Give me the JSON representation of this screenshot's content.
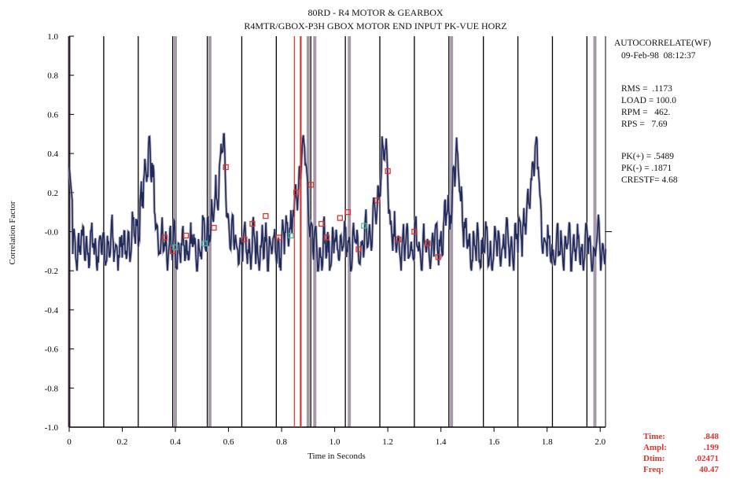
{
  "header": {
    "title": "80RD - R4 MOTOR & GEARBOX",
    "subtitle": "R4MTR/GBOX-P3H   GBOX MOTOR END INPUT PK-VUE HORZ"
  },
  "info": {
    "mode": "AUTOCORRELATE(WF)",
    "datetime": "09-Feb-98  08:12:37",
    "rms": "RMS =  .1173",
    "load": "LOAD = 100.0",
    "rpm": "RPM =   462.",
    "rps": "RPS =   7.69",
    "pk_pos": "PK(+) = .5489",
    "pk_neg": "PK(-) = .1871",
    "crestf": "CRESTF= 4.68"
  },
  "cursor": {
    "time_label": "Time:",
    "time_value": ".848",
    "ampl_label": "Ampl:",
    "ampl_value": ".199",
    "dtim_label": "Dtim:",
    "dtim_value": ".02471",
    "freq_label": "Freq:",
    "freq_value": "40.47"
  },
  "colors": {
    "signal": "#1c2a5c",
    "harmonic_band": "#a79aa8",
    "cursor": "#e0322a",
    "markers": "#e0322a",
    "teal": "#3fbf9f"
  },
  "chart_data": {
    "type": "line",
    "title": "80RD - R4 MOTOR & GEARBOX",
    "subtitle": "R4MTR/GBOX-P3H   GBOX MOTOR END INPUT PK-VUE HORZ",
    "xlabel": "Time in Seconds",
    "ylabel": "Correlation Factor",
    "xlim": [
      0,
      2.02
    ],
    "ylim": [
      -1.0,
      1.0
    ],
    "xticks": [
      0,
      0.2,
      0.4,
      0.6,
      0.8,
      1.0,
      1.2,
      1.4,
      1.6,
      1.8,
      2.0
    ],
    "xtick_labels": [
      "0",
      "0.2",
      "0.4",
      "0.6",
      "0.8",
      "1.0",
      "1.2",
      "1.4",
      "1.6",
      "1.8",
      "2.0"
    ],
    "yticks": [
      1.0,
      0.8,
      0.6,
      0.4,
      0.2,
      0.0,
      -0.2,
      -0.4,
      -0.6,
      -0.8,
      -1.0
    ],
    "ytick_labels": [
      "1.0",
      "0.8",
      "0.6",
      "0.4",
      "0.2",
      "-0.0",
      "-0.2",
      "-0.4",
      "-0.6",
      "-0.8",
      "-1.0"
    ],
    "rotation_marker_times": [
      0.13,
      0.26,
      0.39,
      0.52,
      0.65,
      0.78,
      0.91,
      1.04,
      1.17,
      1.3,
      1.43,
      1.56,
      1.69,
      1.82,
      1.95
    ],
    "harmonic_band_times": [
      0.0,
      0.4,
      0.53,
      0.9,
      0.925,
      1.055,
      1.44,
      1.98
    ],
    "cursor_times": [
      0.848,
      0.872
    ],
    "peaks": [
      {
        "x": 0.3,
        "y": 0.45
      },
      {
        "x": 0.575,
        "y": 0.43
      },
      {
        "x": 0.88,
        "y": 0.47
      },
      {
        "x": 1.185,
        "y": 0.46
      },
      {
        "x": 1.46,
        "y": 0.38
      },
      {
        "x": 1.755,
        "y": 0.45
      }
    ],
    "marker_points": [
      {
        "x": 0.36,
        "y": -0.03
      },
      {
        "x": 0.39,
        "y": -0.1
      },
      {
        "x": 0.44,
        "y": -0.02
      },
      {
        "x": 0.51,
        "y": -0.06
      },
      {
        "x": 0.545,
        "y": 0.02
      },
      {
        "x": 0.59,
        "y": 0.33
      },
      {
        "x": 0.66,
        "y": -0.04
      },
      {
        "x": 0.69,
        "y": 0.04
      },
      {
        "x": 0.74,
        "y": 0.08
      },
      {
        "x": 0.79,
        "y": -0.03
      },
      {
        "x": 0.835,
        "y": -0.02
      },
      {
        "x": 0.855,
        "y": 0.2
      },
      {
        "x": 0.91,
        "y": 0.24
      },
      {
        "x": 0.95,
        "y": 0.04
      },
      {
        "x": 0.97,
        "y": -0.03
      },
      {
        "x": 1.02,
        "y": 0.07
      },
      {
        "x": 1.05,
        "y": 0.1
      },
      {
        "x": 1.11,
        "y": 0.03
      },
      {
        "x": 1.16,
        "y": 0.16
      },
      {
        "x": 1.2,
        "y": 0.31
      },
      {
        "x": 1.24,
        "y": -0.04
      },
      {
        "x": 1.3,
        "y": 0.0
      },
      {
        "x": 1.35,
        "y": -0.06
      },
      {
        "x": 1.39,
        "y": -0.13
      },
      {
        "x": 0.4,
        "y": -0.08
      },
      {
        "x": 1.09,
        "y": -0.09
      }
    ]
  }
}
